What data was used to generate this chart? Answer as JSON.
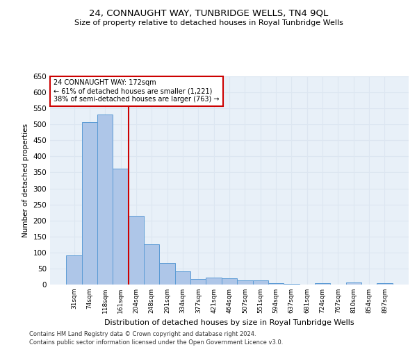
{
  "title": "24, CONNAUGHT WAY, TUNBRIDGE WELLS, TN4 9QL",
  "subtitle": "Size of property relative to detached houses in Royal Tunbridge Wells",
  "xlabel": "Distribution of detached houses by size in Royal Tunbridge Wells",
  "ylabel": "Number of detached properties",
  "footnote1": "Contains HM Land Registry data © Crown copyright and database right 2024.",
  "footnote2": "Contains public sector information licensed under the Open Government Licence v3.0.",
  "annotation_line1": "24 CONNAUGHT WAY: 172sqm",
  "annotation_line2": "← 61% of detached houses are smaller (1,221)",
  "annotation_line3": "38% of semi-detached houses are larger (763) →",
  "bar_labels": [
    "31sqm",
    "74sqm",
    "118sqm",
    "161sqm",
    "204sqm",
    "248sqm",
    "291sqm",
    "334sqm",
    "377sqm",
    "421sqm",
    "464sqm",
    "507sqm",
    "551sqm",
    "594sqm",
    "637sqm",
    "681sqm",
    "724sqm",
    "767sqm",
    "810sqm",
    "854sqm",
    "897sqm"
  ],
  "bar_values": [
    91,
    507,
    530,
    362,
    214,
    126,
    68,
    42,
    18,
    21,
    19,
    12,
    12,
    5,
    2,
    1,
    5,
    1,
    7,
    1,
    5
  ],
  "bar_color": "#aec6e8",
  "bar_edge_color": "#5b9bd5",
  "grid_color": "#dce6f1",
  "red_line_color": "#cc0000",
  "annotation_box_color": "#cc0000",
  "ylim": [
    0,
    650
  ],
  "yticks": [
    0,
    50,
    100,
    150,
    200,
    250,
    300,
    350,
    400,
    450,
    500,
    550,
    600,
    650
  ],
  "red_line_x": 3.5,
  "fig_bg_color": "#ffffff",
  "ax_bg_color": "#e8f0f8"
}
